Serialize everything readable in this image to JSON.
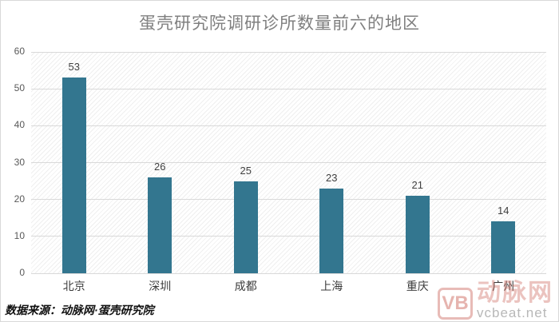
{
  "chart_data": {
    "type": "bar",
    "title": "蛋壳研究院调研诊所数量前六的地区",
    "categories": [
      "北京",
      "深圳",
      "成都",
      "上海",
      "重庆",
      "广州"
    ],
    "values": [
      53,
      26,
      25,
      23,
      21,
      14
    ],
    "xlabel": "",
    "ylabel": "",
    "ylim": [
      0,
      60
    ],
    "yticks": [
      0,
      10,
      20,
      30,
      40,
      50,
      60
    ],
    "grid": true,
    "legend": false,
    "bar_color": "#33768F",
    "plot_hatch": "light-diagonal-stripe",
    "gridline_color": "#d9d9d9",
    "title_color": "#7f7f7f",
    "tick_label_color": "#595959",
    "value_label_color": "#404040"
  },
  "source_note": "数据来源：动脉网·蛋壳研究院",
  "watermark": {
    "logo_text": "VB",
    "brand": "动脉网",
    "url": "vcbeat.net",
    "color": "#cd695f"
  }
}
